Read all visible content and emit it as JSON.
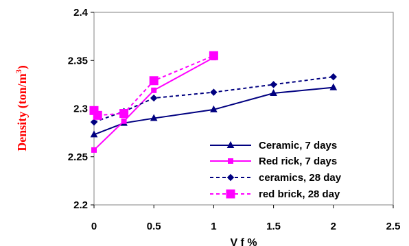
{
  "chart_data": {
    "type": "line",
    "title": "",
    "xlabel": "V f %",
    "ylabel": "Density (ton/m",
    "ylabel_sup": "3",
    "ylabel_close": ")",
    "xlim": [
      0,
      2.5
    ],
    "ylim": [
      2.2,
      2.4
    ],
    "xticks": [
      "0",
      "0.5",
      "1",
      "1.5",
      "2",
      "2.5"
    ],
    "yticks": [
      "2.2",
      "2.25",
      "2.3",
      "2.35",
      "2.4"
    ],
    "grid": false,
    "legend_position": "bottom-right",
    "series": [
      {
        "name": "Ceramic, 7 days",
        "color": "#000080",
        "dash": "solid",
        "marker": "triangle",
        "points": [
          [
            0,
            2.273
          ],
          [
            0.25,
            2.285
          ],
          [
            0.5,
            2.29
          ],
          [
            1,
            2.299
          ],
          [
            1.5,
            2.316
          ],
          [
            2,
            2.322
          ]
        ]
      },
      {
        "name": "Red rick, 7 days",
        "color": "#ff00ff",
        "dash": "solid",
        "marker": "square-small",
        "points": [
          [
            0,
            2.257
          ],
          [
            0.25,
            2.287
          ],
          [
            0.5,
            2.319
          ],
          [
            1,
            2.353
          ]
        ]
      },
      {
        "name": "ceramics, 28 day",
        "color": "#000080",
        "dash": "dashed",
        "marker": "diamond",
        "points": [
          [
            0,
            2.286
          ],
          [
            0.25,
            2.297
          ],
          [
            0.5,
            2.311
          ],
          [
            1,
            2.317
          ],
          [
            1.5,
            2.325
          ],
          [
            2,
            2.333
          ]
        ]
      },
      {
        "name": "red brick, 28 day",
        "color": "#ff00ff",
        "dash": "dashed",
        "marker": "square-large",
        "points": [
          [
            0,
            2.298
          ],
          [
            0.03,
            2.293
          ],
          [
            0.25,
            2.295
          ],
          [
            0.5,
            2.329
          ],
          [
            1,
            2.355
          ]
        ]
      }
    ]
  }
}
